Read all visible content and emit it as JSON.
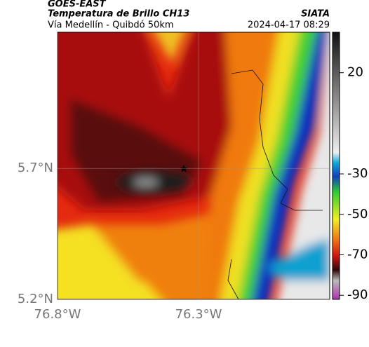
{
  "header": {
    "source": "GOES-EAST",
    "title": "Temperatura de Brillo CH13",
    "org": "SIATA",
    "subtitle": "Vía Medellín - Quibdó 50km",
    "datetime": "2024-04-17 08:29"
  },
  "map": {
    "xlim": [
      -76.8,
      -75.835
    ],
    "ylim": [
      5.2,
      6.22
    ],
    "xticks": [
      {
        "value": -76.8,
        "label": "76.8°W"
      },
      {
        "value": -76.3,
        "label": "76.3°W"
      }
    ],
    "yticks": [
      {
        "value": 5.7,
        "label": "5.7°N"
      },
      {
        "value": 5.2,
        "label": "5.2°N"
      }
    ],
    "grid": true
  },
  "colorbar": {
    "lim": [
      40,
      -92
    ],
    "ticks": [
      20,
      -30,
      -50,
      -70,
      -90
    ]
  }
}
